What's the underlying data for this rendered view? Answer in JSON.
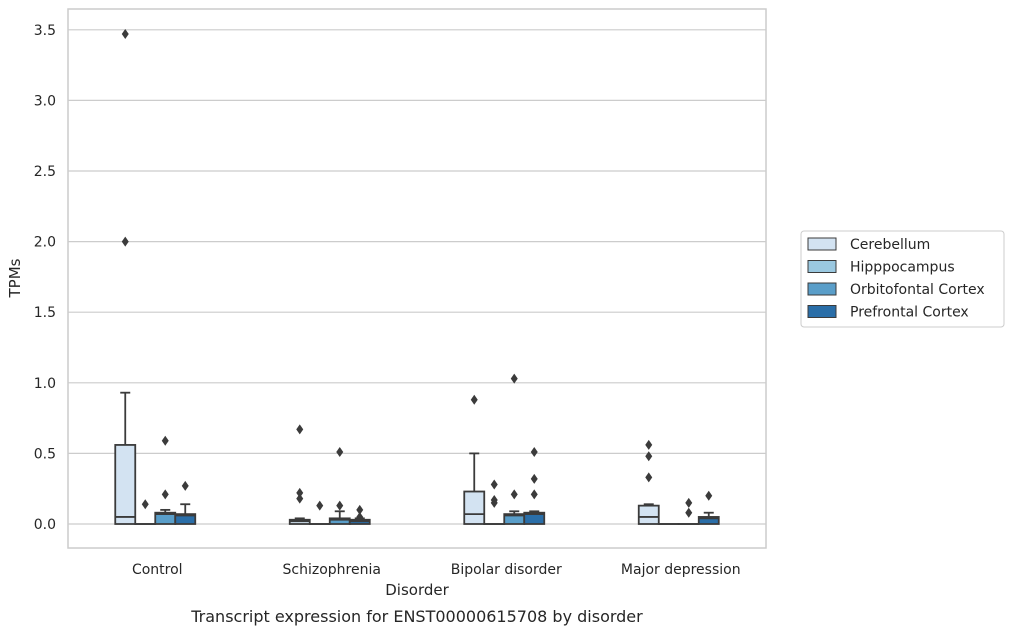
{
  "chart_data": {
    "type": "box",
    "caption": "Transcript expression for ENST00000615708 by disorder",
    "xlabel": "Disorder",
    "ylabel": "TPMs",
    "ylim": [
      -0.17,
      3.65
    ],
    "yticks": [
      "0.0",
      "0.5",
      "1.0",
      "1.5",
      "2.0",
      "2.5",
      "3.0",
      "3.5"
    ],
    "grid": "horizontal",
    "legend_position": "right",
    "categories": [
      "Control",
      "Schizophrenia",
      "Bipolar disorder",
      "Major depression"
    ],
    "series": [
      {
        "name": "Cerebellum",
        "color": "#d3e3f2",
        "boxes": [
          {
            "q1": 0.0,
            "median": 0.05,
            "q3": 0.56,
            "whisker_low": 0.0,
            "whisker_high": 0.93,
            "outliers": [
              2.0,
              3.47
            ]
          },
          {
            "q1": 0.0,
            "median": 0.02,
            "q3": 0.03,
            "whisker_low": 0.0,
            "whisker_high": 0.04,
            "outliers": [
              0.18,
              0.22,
              0.67
            ]
          },
          {
            "q1": 0.0,
            "median": 0.07,
            "q3": 0.23,
            "whisker_low": 0.0,
            "whisker_high": 0.5,
            "outliers": [
              0.88
            ]
          },
          {
            "q1": 0.0,
            "median": 0.05,
            "q3": 0.13,
            "whisker_low": 0.0,
            "whisker_high": 0.14,
            "outliers": [
              0.33,
              0.48,
              0.56
            ]
          }
        ]
      },
      {
        "name": "Hipppocampus",
        "color": "#9ac8e0",
        "boxes": [
          {
            "q1": 0.0,
            "median": 0.0,
            "q3": 0.0,
            "whisker_low": 0.0,
            "whisker_high": 0.0,
            "outliers": [
              0.14
            ]
          },
          {
            "q1": 0.0,
            "median": 0.0,
            "q3": 0.0,
            "whisker_low": 0.0,
            "whisker_high": 0.0,
            "outliers": [
              0.13
            ]
          },
          {
            "q1": 0.0,
            "median": 0.0,
            "q3": 0.0,
            "whisker_low": 0.0,
            "whisker_high": 0.0,
            "outliers": [
              0.15,
              0.17,
              0.28
            ]
          },
          {
            "q1": 0.0,
            "median": 0.0,
            "q3": 0.0,
            "whisker_low": 0.0,
            "whisker_high": 0.0,
            "outliers": []
          }
        ]
      },
      {
        "name": "Orbitofontal Cortex",
        "color": "#5a9ec9",
        "boxes": [
          {
            "q1": 0.0,
            "median": 0.07,
            "q3": 0.08,
            "whisker_low": 0.0,
            "whisker_high": 0.1,
            "outliers": [
              0.21,
              0.59
            ]
          },
          {
            "q1": 0.0,
            "median": 0.03,
            "q3": 0.04,
            "whisker_low": 0.0,
            "whisker_high": 0.09,
            "outliers": [
              0.13,
              0.51
            ]
          },
          {
            "q1": 0.0,
            "median": 0.06,
            "q3": 0.07,
            "whisker_low": 0.0,
            "whisker_high": 0.09,
            "outliers": [
              0.21,
              1.03
            ]
          },
          {
            "q1": 0.0,
            "median": 0.0,
            "q3": 0.0,
            "whisker_low": 0.0,
            "whisker_high": 0.0,
            "outliers": [
              0.08,
              0.15
            ]
          }
        ]
      },
      {
        "name": "Prefrontal Cortex",
        "color": "#2a6ea8",
        "boxes": [
          {
            "q1": 0.0,
            "median": 0.06,
            "q3": 0.07,
            "whisker_low": 0.0,
            "whisker_high": 0.14,
            "outliers": [
              0.27
            ]
          },
          {
            "q1": 0.0,
            "median": 0.02,
            "q3": 0.03,
            "whisker_low": 0.0,
            "whisker_high": 0.04,
            "outliers": [
              0.05,
              0.1
            ]
          },
          {
            "q1": 0.0,
            "median": 0.07,
            "q3": 0.08,
            "whisker_low": 0.0,
            "whisker_high": 0.09,
            "outliers": [
              0.21,
              0.32,
              0.51
            ]
          },
          {
            "q1": 0.0,
            "median": 0.04,
            "q3": 0.05,
            "whisker_low": 0.0,
            "whisker_high": 0.08,
            "outliers": [
              0.2
            ]
          }
        ]
      }
    ]
  }
}
